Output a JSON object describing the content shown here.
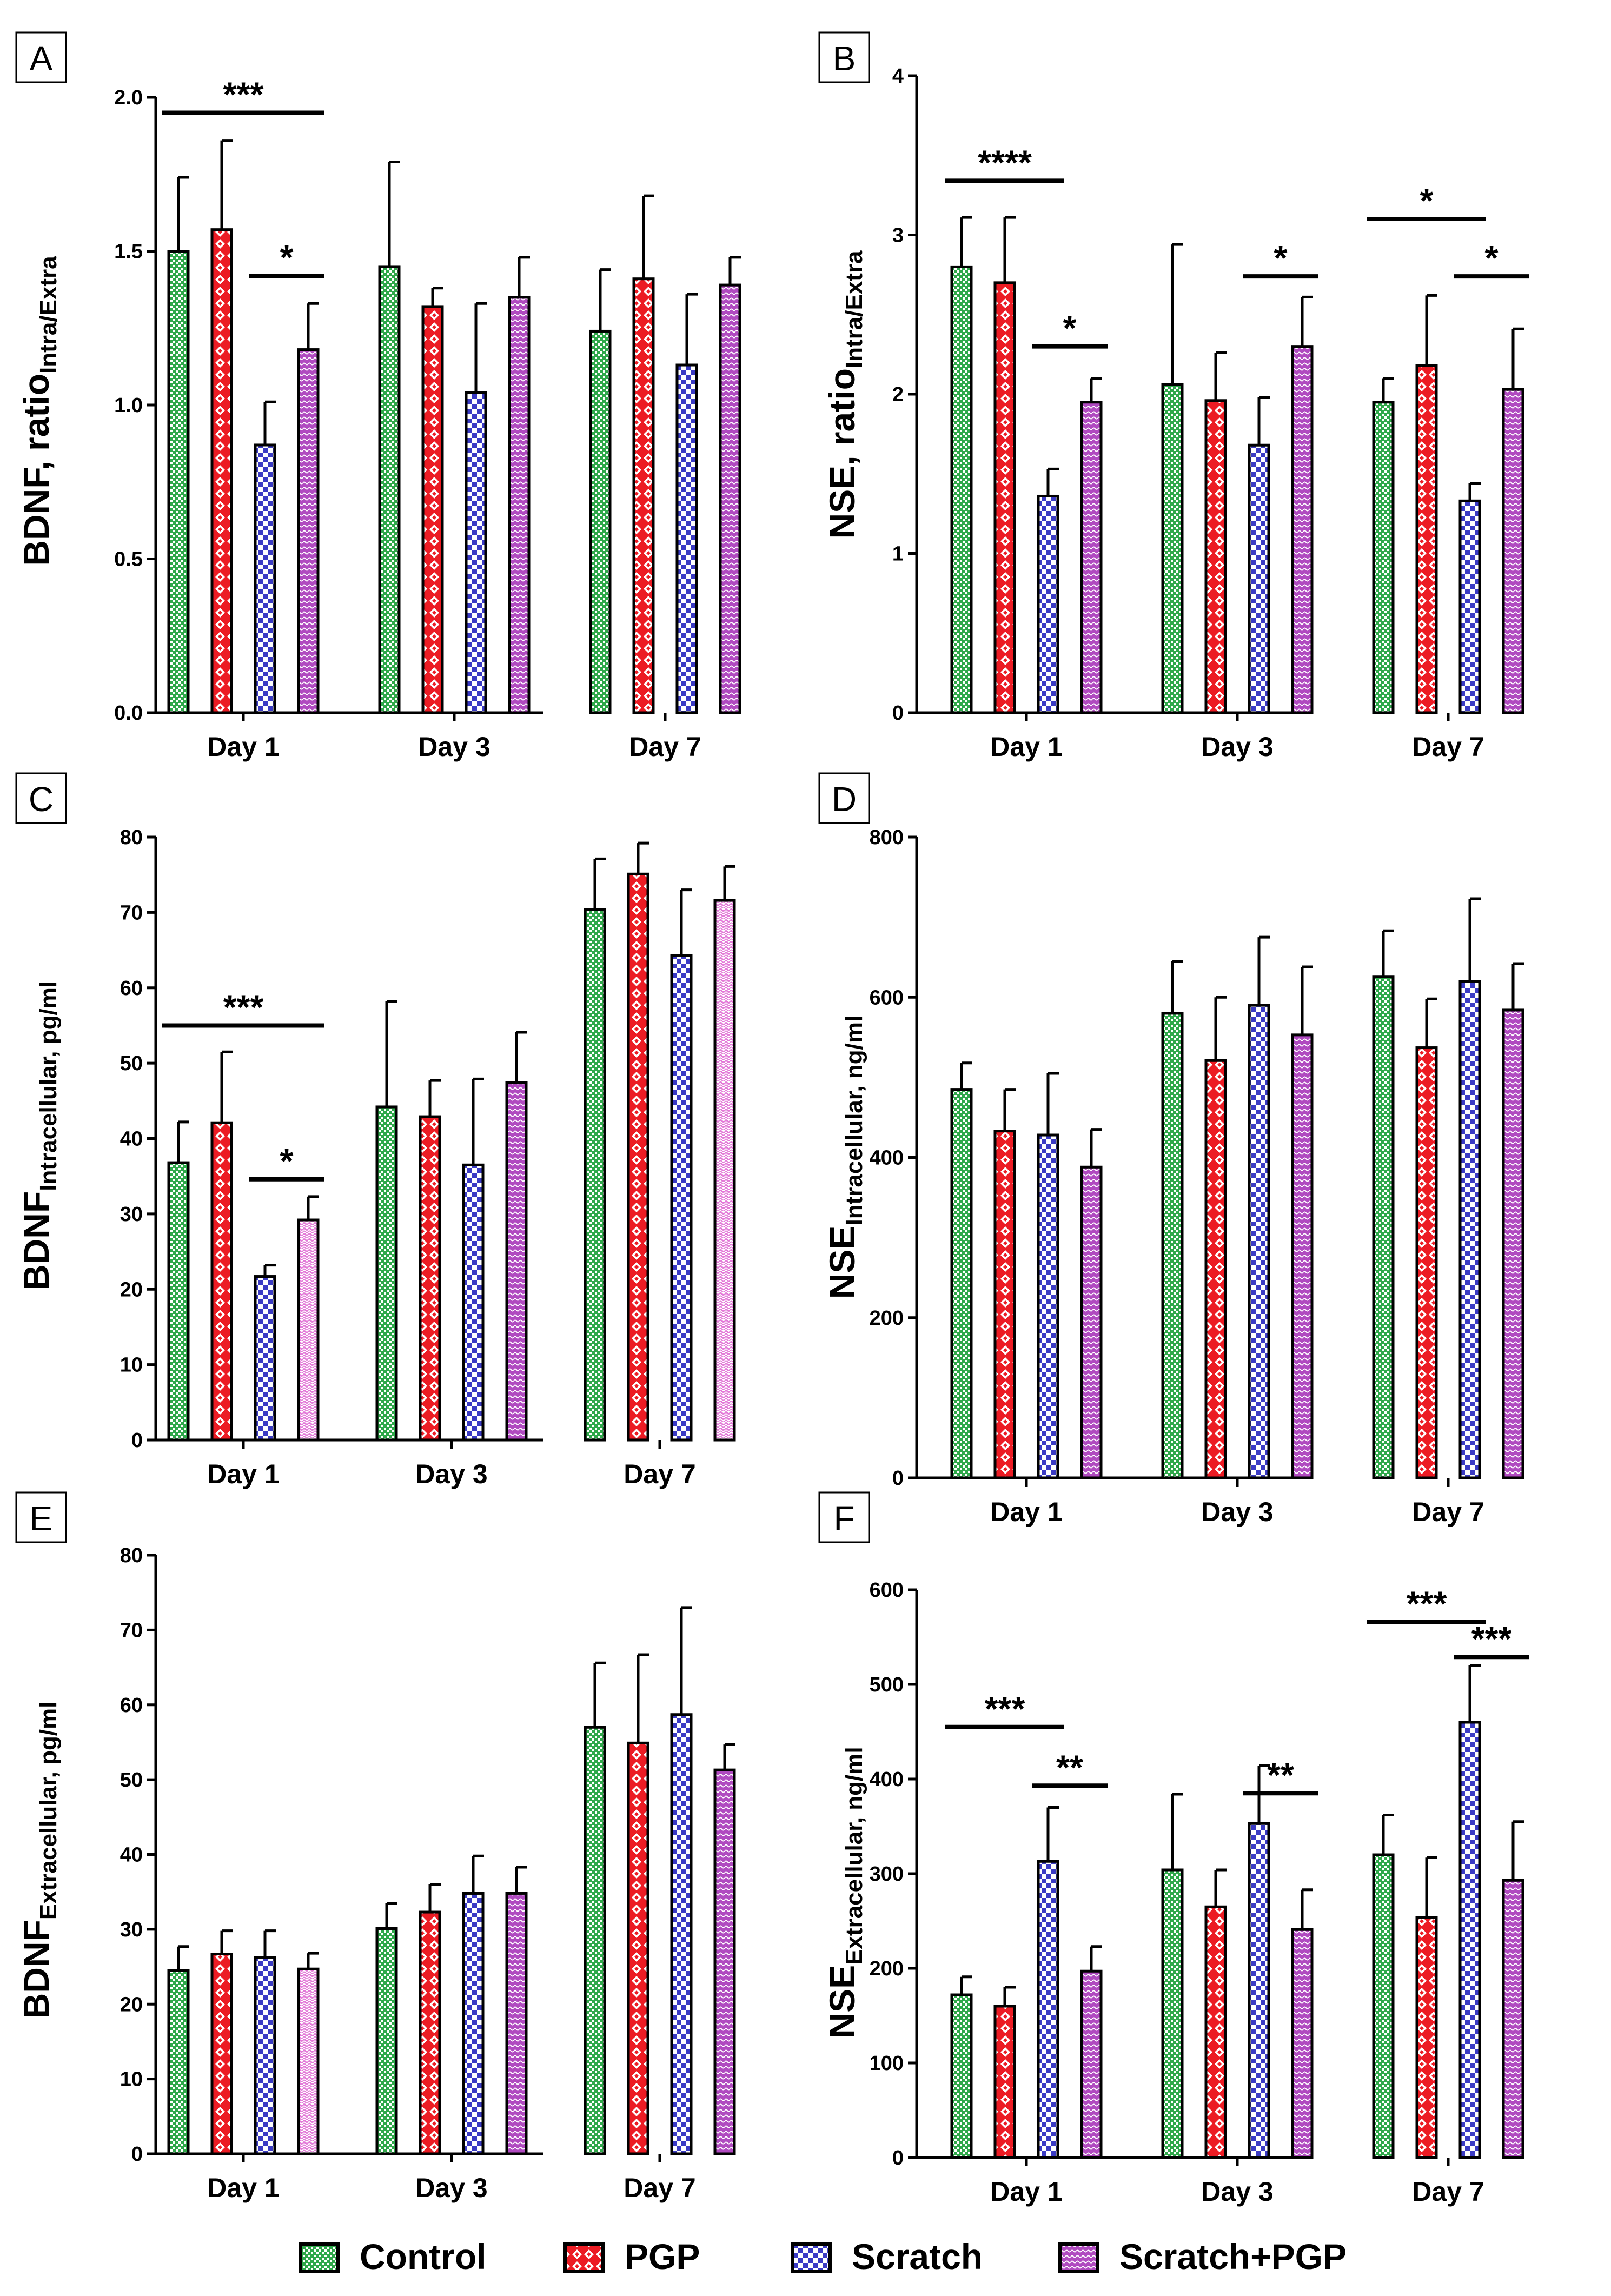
{
  "legend": [
    {
      "name": "Control",
      "pattern": "green"
    },
    {
      "name": "PGP",
      "pattern": "red"
    },
    {
      "name": "Scratch",
      "pattern": "blue"
    },
    {
      "name": "Scratch+PGP",
      "pattern": "purple"
    }
  ],
  "colors": {
    "green": "#2fa84a",
    "red": "#ec1c24",
    "blue": "#3b3bc4",
    "purple": "#b04ac0",
    "pink": "#e37ad8"
  },
  "chart_data": [
    {
      "panel": "A",
      "type": "bar",
      "ylabel_main": "BDNF, ratio",
      "ylabel_sub": "Intra/Extra",
      "ylim": [
        0,
        2.0
      ],
      "yticks": [
        "0.0",
        "0.5",
        "1.0",
        "1.5",
        "2.0"
      ],
      "categories": [
        "Day 1",
        "Day 3",
        "Day 7"
      ],
      "series": [
        {
          "name": "Control",
          "values": [
            1.5,
            1.45,
            1.24
          ],
          "errors": [
            0.24,
            0.34,
            0.2
          ]
        },
        {
          "name": "PGP",
          "values": [
            1.57,
            1.32,
            1.41
          ],
          "errors": [
            0.29,
            0.06,
            0.27
          ]
        },
        {
          "name": "Scratch",
          "values": [
            0.87,
            1.04,
            1.13
          ],
          "errors": [
            0.14,
            0.29,
            0.23
          ]
        },
        {
          "name": "Scratch+PGP",
          "values": [
            1.18,
            1.35,
            1.39
          ],
          "errors": [
            0.15,
            0.13,
            0.09
          ]
        }
      ],
      "significance": [
        {
          "label": "***",
          "day": 0,
          "from": 0,
          "to": 3,
          "y": 1.95
        },
        {
          "label": "*",
          "day": 0,
          "from": 2,
          "to": 3,
          "y": 1.42
        }
      ]
    },
    {
      "panel": "B",
      "type": "bar",
      "ylabel_main": "NSE, ratio",
      "ylabel_sub": "Intra/Extra",
      "ylim": [
        0,
        4
      ],
      "yticks": [
        "0",
        "1",
        "2",
        "3",
        "4"
      ],
      "categories": [
        "Day 1",
        "Day 3",
        "Day 7"
      ],
      "series": [
        {
          "name": "Control",
          "values": [
            2.8,
            2.06,
            1.95
          ],
          "errors": [
            0.31,
            0.88,
            0.15
          ]
        },
        {
          "name": "PGP",
          "values": [
            2.7,
            1.96,
            2.18
          ],
          "errors": [
            0.41,
            0.3,
            0.44
          ]
        },
        {
          "name": "Scratch",
          "values": [
            1.36,
            1.68,
            1.33
          ],
          "errors": [
            0.17,
            0.3,
            0.11
          ]
        },
        {
          "name": "Scratch+PGP",
          "values": [
            1.95,
            2.3,
            2.03
          ],
          "errors": [
            0.15,
            0.31,
            0.38
          ]
        }
      ],
      "significance": [
        {
          "label": "****",
          "day": 0,
          "from": 0,
          "to": 2,
          "y": 3.34
        },
        {
          "label": "*",
          "day": 0,
          "from": 2,
          "to": 3,
          "y": 2.3
        },
        {
          "label": "*",
          "day": 1,
          "from": 2,
          "to": 3,
          "y": 2.74
        },
        {
          "label": "*",
          "day": 2,
          "from": 0,
          "to": 2,
          "y": 3.1
        },
        {
          "label": "*",
          "day": 2,
          "from": 2,
          "to": 3,
          "y": 2.74
        }
      ]
    },
    {
      "panel": "C",
      "type": "bar",
      "ylabel_main": "BDNF",
      "ylabel_sub": "Intracellular, pg/ml",
      "ylim": [
        0,
        80
      ],
      "yticks": [
        "0",
        "10",
        "20",
        "30",
        "40",
        "50",
        "60",
        "70",
        "80"
      ],
      "categories": [
        "Day 1",
        "Day 3",
        "Day 7"
      ],
      "series": [
        {
          "name": "Control",
          "values": [
            36.8,
            44.2,
            70.4
          ],
          "errors": [
            5.4,
            14.0,
            6.7
          ]
        },
        {
          "name": "PGP",
          "values": [
            42.1,
            42.9,
            75.1
          ],
          "errors": [
            9.4,
            4.8,
            4.1
          ]
        },
        {
          "name": "Scratch",
          "values": [
            21.7,
            36.5,
            64.3
          ],
          "errors": [
            1.5,
            11.4,
            8.7
          ]
        },
        {
          "name": "Scratch+PGP",
          "values": [
            29.2,
            47.4,
            71.6
          ],
          "errors": [
            3.1,
            6.7,
            4.5
          ]
        }
      ],
      "significance": [
        {
          "label": "***",
          "day": 0,
          "from": 0,
          "to": 3,
          "y": 55
        },
        {
          "label": "*",
          "day": 0,
          "from": 2,
          "to": 3,
          "y": 34.6
        }
      ]
    },
    {
      "panel": "D",
      "type": "bar",
      "ylabel_main": "NSE",
      "ylabel_sub": "Intracellular, ng/ml",
      "ylim": [
        0,
        800
      ],
      "yticks": [
        "0",
        "200",
        "400",
        "600",
        "800"
      ],
      "categories": [
        "Day 1",
        "Day 3",
        "Day 7"
      ],
      "series": [
        {
          "name": "Control",
          "values": [
            485,
            580,
            626
          ],
          "errors": [
            33,
            65,
            57
          ]
        },
        {
          "name": "PGP",
          "values": [
            433,
            521,
            537
          ],
          "errors": [
            52,
            79,
            61
          ]
        },
        {
          "name": "Scratch",
          "values": [
            428,
            590,
            620
          ],
          "errors": [
            77,
            85,
            103
          ]
        },
        {
          "name": "Scratch+PGP",
          "values": [
            388,
            553,
            584
          ],
          "errors": [
            47,
            85,
            58
          ]
        }
      ],
      "significance": []
    },
    {
      "panel": "E",
      "type": "bar",
      "ylabel_main": "BDNF",
      "ylabel_sub": "Extracellular, pg/ml",
      "ylim": [
        0,
        80
      ],
      "yticks": [
        "0",
        "10",
        "20",
        "30",
        "40",
        "50",
        "60",
        "70",
        "80"
      ],
      "categories": [
        "Day 1",
        "Day 3",
        "Day 7"
      ],
      "series": [
        {
          "name": "Control",
          "values": [
            24.5,
            30.1,
            57.0
          ],
          "errors": [
            3.2,
            3.4,
            8.6
          ]
        },
        {
          "name": "PGP",
          "values": [
            26.7,
            32.3,
            54.9
          ],
          "errors": [
            3.1,
            3.7,
            11.8
          ]
        },
        {
          "name": "Scratch",
          "values": [
            26.2,
            34.8,
            58.7
          ],
          "errors": [
            3.6,
            5.0,
            14.3
          ]
        },
        {
          "name": "Scratch+PGP",
          "values": [
            24.7,
            34.8,
            51.3
          ],
          "errors": [
            2.1,
            3.5,
            3.4
          ]
        }
      ],
      "significance": []
    },
    {
      "panel": "F",
      "type": "bar",
      "ylabel_main": "NSE",
      "ylabel_sub": "Extracellular, ng/ml",
      "ylim": [
        0,
        600
      ],
      "yticks": [
        "0",
        "100",
        "200",
        "300",
        "400",
        "500",
        "600"
      ],
      "categories": [
        "Day 1",
        "Day 3",
        "Day 7"
      ],
      "series": [
        {
          "name": "Control",
          "values": [
            172,
            304,
            320
          ],
          "errors": [
            19,
            80,
            42
          ]
        },
        {
          "name": "PGP",
          "values": [
            160,
            265,
            254
          ],
          "errors": [
            20,
            39,
            63
          ]
        },
        {
          "name": "Scratch",
          "values": [
            313,
            353,
            460
          ],
          "errors": [
            57,
            61,
            60
          ]
        },
        {
          "name": "Scratch+PGP",
          "values": [
            197,
            241,
            293
          ],
          "errors": [
            26,
            42,
            62
          ]
        }
      ],
      "significance": [
        {
          "label": "***",
          "day": 0,
          "from": 0,
          "to": 2,
          "y": 455
        },
        {
          "label": "**",
          "day": 0,
          "from": 2,
          "to": 3,
          "y": 393
        },
        {
          "label": "**",
          "day": 1,
          "from": 2,
          "to": 3,
          "y": 385
        },
        {
          "label": "***",
          "day": 2,
          "from": 0,
          "to": 2,
          "y": 566
        },
        {
          "label": "***",
          "day": 2,
          "from": 2,
          "to": 3,
          "y": 529
        }
      ]
    }
  ]
}
